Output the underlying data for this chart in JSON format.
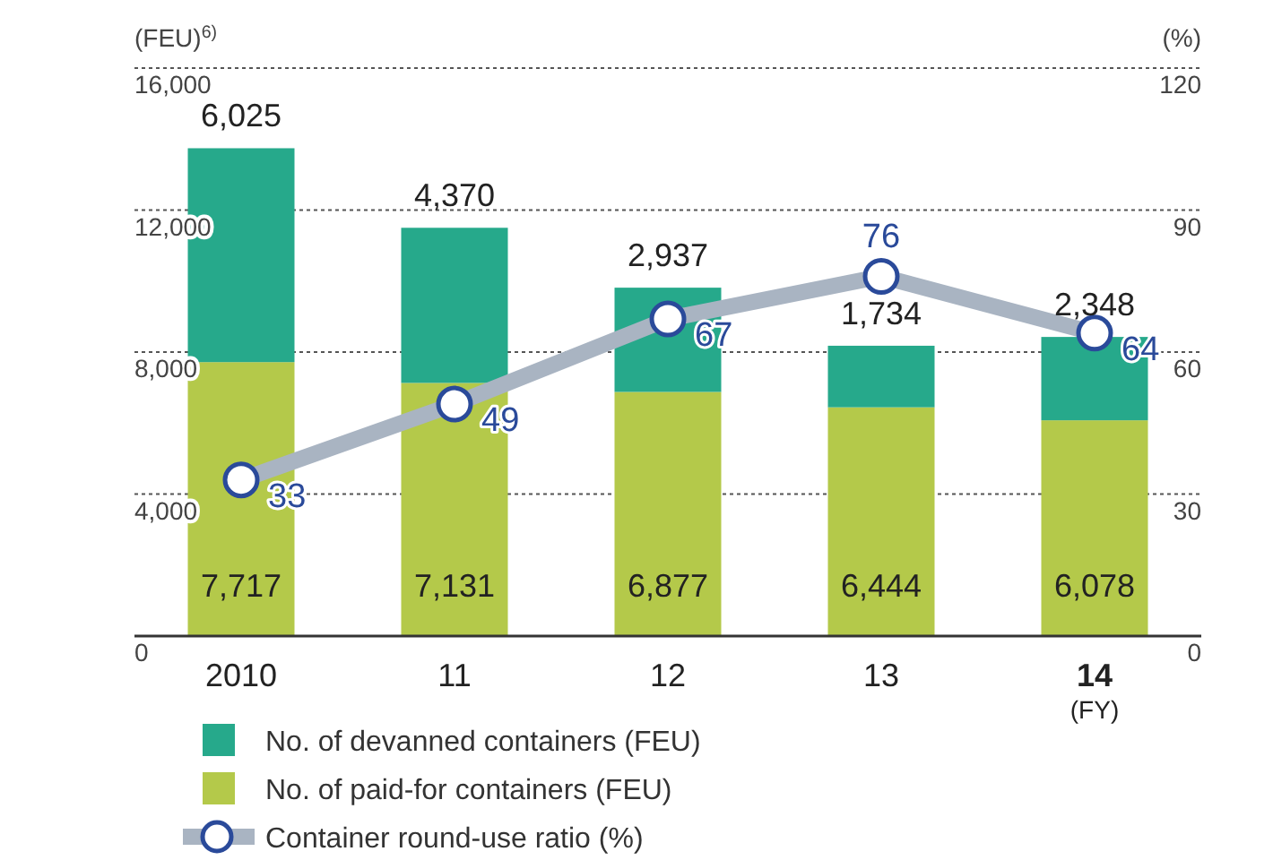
{
  "chart_data": {
    "type": "bar",
    "stacked": true,
    "ylabel": "(FEU)$^{6)}$",
    "y2label": "(%)",
    "xlabel": "(FY)",
    "categories": [
      "2010",
      "11",
      "12",
      "13",
      "14"
    ],
    "series": [
      {
        "name": "No. of paid-for containers (FEU)",
        "color": "#b4c94a",
        "values": [
          7717,
          7131,
          6877,
          6444,
          6078
        ],
        "value_labels": [
          "7,717",
          "7,131",
          "6,877",
          "6,444",
          "6,078"
        ]
      },
      {
        "name": "No. of devanned containers (FEU)",
        "color": "#26a98b",
        "values": [
          6025,
          4370,
          2937,
          1734,
          2348
        ],
        "value_labels": [
          "6,025",
          "4,370",
          "2,937",
          "1,734",
          "2,348"
        ]
      },
      {
        "name": "Container round-use ratio (%)",
        "type": "line",
        "axis": "y2",
        "color": "#a9b4c2",
        "values": [
          33,
          49,
          67,
          76,
          64
        ],
        "value_labels": [
          "33",
          "49",
          "67",
          "76",
          "64"
        ]
      }
    ],
    "ylim": [
      0,
      16000
    ],
    "yticks": [
      {
        "value": 0,
        "label": "0"
      },
      {
        "value": 4000,
        "label": "4,000"
      },
      {
        "value": 8000,
        "label": "8,000"
      },
      {
        "value": 12000,
        "label": "12,000"
      },
      {
        "value": 16000,
        "label": "16,000"
      }
    ],
    "y2lim": [
      0,
      120
    ],
    "y2ticks": [
      0,
      30,
      60,
      90,
      120
    ],
    "grid": "y",
    "legend": "bottom",
    "marker": "circle"
  }
}
